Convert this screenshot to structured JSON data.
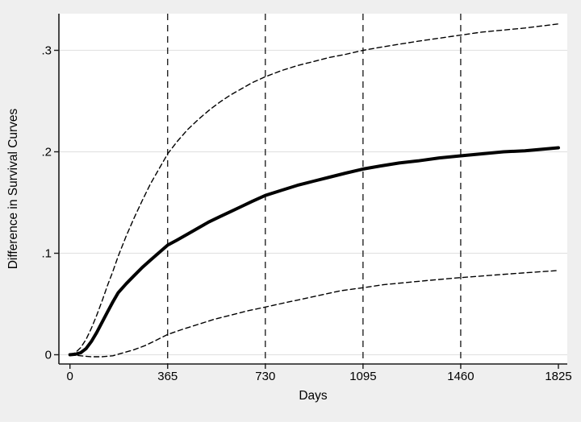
{
  "chart_data": {
    "type": "line",
    "title": "",
    "xlabel": "Days",
    "ylabel": "Difference in Survival Curves",
    "xlim": [
      0,
      1825
    ],
    "ylim": [
      -0.009,
      0.336
    ],
    "x_ticks": [
      0,
      365,
      730,
      1095,
      1460,
      1825
    ],
    "x_tick_labels": [
      "0",
      "365",
      "730",
      "1095",
      "1460",
      "1825"
    ],
    "y_ticks": [
      0,
      0.1,
      0.2,
      0.3
    ],
    "y_tick_labels": [
      "0",
      ".1",
      ".2",
      ".3"
    ],
    "x_ref_lines": [
      365,
      730,
      1095,
      1460
    ],
    "grid": "horizontal-only",
    "legend": "none",
    "colors": {
      "figure_background": "#efefef",
      "plot_background": "#ffffff",
      "gridline": "#e3e3e3",
      "axis": "#1a1a1a",
      "estimate_line": "#000000",
      "ci_line": "#000000",
      "ref_line": "#000000"
    },
    "series": [
      {
        "name": "difference-estimate",
        "style": "solid-thick",
        "points": [
          [
            0,
            0.0
          ],
          [
            20,
            0.0005
          ],
          [
            40,
            0.002
          ],
          [
            60,
            0.006
          ],
          [
            80,
            0.013
          ],
          [
            100,
            0.022
          ],
          [
            120,
            0.032
          ],
          [
            140,
            0.042
          ],
          [
            160,
            0.052
          ],
          [
            180,
            0.061
          ],
          [
            210,
            0.07
          ],
          [
            240,
            0.078
          ],
          [
            270,
            0.086
          ],
          [
            300,
            0.093
          ],
          [
            330,
            0.1
          ],
          [
            365,
            0.108
          ],
          [
            400,
            0.113
          ],
          [
            440,
            0.119
          ],
          [
            480,
            0.125
          ],
          [
            520,
            0.131
          ],
          [
            560,
            0.136
          ],
          [
            600,
            0.141
          ],
          [
            640,
            0.146
          ],
          [
            680,
            0.151
          ],
          [
            730,
            0.157
          ],
          [
            790,
            0.162
          ],
          [
            850,
            0.167
          ],
          [
            910,
            0.171
          ],
          [
            970,
            0.175
          ],
          [
            1030,
            0.179
          ],
          [
            1095,
            0.183
          ],
          [
            1160,
            0.186
          ],
          [
            1230,
            0.189
          ],
          [
            1300,
            0.191
          ],
          [
            1380,
            0.194
          ],
          [
            1460,
            0.196
          ],
          [
            1540,
            0.198
          ],
          [
            1620,
            0.2
          ],
          [
            1700,
            0.201
          ],
          [
            1825,
            0.204
          ]
        ]
      },
      {
        "name": "upper-confidence-limit",
        "style": "dashed",
        "points": [
          [
            0,
            0.0
          ],
          [
            20,
            0.002
          ],
          [
            40,
            0.007
          ],
          [
            60,
            0.015
          ],
          [
            80,
            0.026
          ],
          [
            100,
            0.039
          ],
          [
            120,
            0.053
          ],
          [
            140,
            0.068
          ],
          [
            160,
            0.082
          ],
          [
            180,
            0.097
          ],
          [
            210,
            0.117
          ],
          [
            240,
            0.135
          ],
          [
            270,
            0.152
          ],
          [
            300,
            0.168
          ],
          [
            330,
            0.182
          ],
          [
            365,
            0.198
          ],
          [
            400,
            0.21
          ],
          [
            440,
            0.222
          ],
          [
            480,
            0.232
          ],
          [
            520,
            0.241
          ],
          [
            560,
            0.249
          ],
          [
            600,
            0.256
          ],
          [
            640,
            0.262
          ],
          [
            680,
            0.268
          ],
          [
            730,
            0.274
          ],
          [
            790,
            0.28
          ],
          [
            850,
            0.285
          ],
          [
            910,
            0.289
          ],
          [
            970,
            0.293
          ],
          [
            1030,
            0.296
          ],
          [
            1095,
            0.3
          ],
          [
            1160,
            0.303
          ],
          [
            1230,
            0.306
          ],
          [
            1300,
            0.309
          ],
          [
            1380,
            0.312
          ],
          [
            1460,
            0.315
          ],
          [
            1540,
            0.318
          ],
          [
            1620,
            0.32
          ],
          [
            1700,
            0.322
          ],
          [
            1825,
            0.326
          ]
        ]
      },
      {
        "name": "lower-confidence-limit",
        "style": "dashed",
        "points": [
          [
            0,
            0.0
          ],
          [
            40,
            -0.001
          ],
          [
            80,
            -0.002
          ],
          [
            120,
            -0.002
          ],
          [
            160,
            -0.001
          ],
          [
            200,
            0.002
          ],
          [
            240,
            0.005
          ],
          [
            280,
            0.009
          ],
          [
            320,
            0.014
          ],
          [
            365,
            0.02
          ],
          [
            420,
            0.025
          ],
          [
            480,
            0.03
          ],
          [
            540,
            0.035
          ],
          [
            600,
            0.039
          ],
          [
            660,
            0.043
          ],
          [
            730,
            0.047
          ],
          [
            800,
            0.051
          ],
          [
            870,
            0.055
          ],
          [
            940,
            0.059
          ],
          [
            1010,
            0.063
          ],
          [
            1095,
            0.066
          ],
          [
            1170,
            0.069
          ],
          [
            1250,
            0.071
          ],
          [
            1330,
            0.073
          ],
          [
            1460,
            0.076
          ],
          [
            1560,
            0.078
          ],
          [
            1660,
            0.08
          ],
          [
            1825,
            0.083
          ]
        ]
      }
    ]
  }
}
